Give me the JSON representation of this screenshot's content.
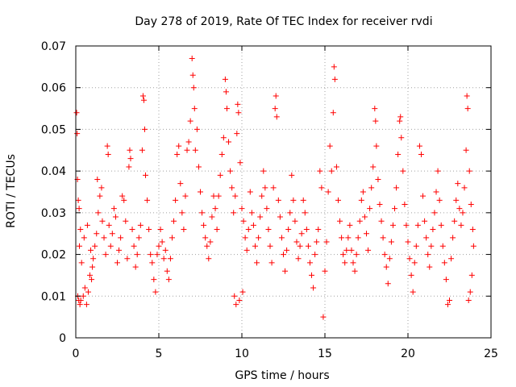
{
  "chart_data": {
    "type": "scatter",
    "title": "Day 278 of 2019, Rate Of TEC Index for receiver rvdi",
    "xlabel": "GPS time / hours",
    "ylabel": "ROTI / TECUs",
    "xlim": [
      0,
      25
    ],
    "ylim": [
      0,
      0.07
    ],
    "x_ticks": [
      "0",
      "5",
      "10",
      "15",
      "20",
      "25"
    ],
    "y_ticks": [
      "0",
      "0.01",
      "0.02",
      "0.03",
      "0.04",
      "0.05",
      "0.06",
      "0.07"
    ],
    "grid": true,
    "marker": "+",
    "color": "#ff0000",
    "series": [
      {
        "name": "rvdi",
        "points": [
          [
            0.05,
            0.054
          ],
          [
            0.08,
            0.049
          ],
          [
            0.1,
            0.038
          ],
          [
            0.15,
            0.033
          ],
          [
            0.2,
            0.031
          ],
          [
            0.12,
            0.01
          ],
          [
            0.18,
            0.009
          ],
          [
            0.25,
            0.008
          ],
          [
            0.3,
            0.009
          ],
          [
            0.22,
            0.022
          ],
          [
            0.28,
            0.026
          ],
          [
            0.35,
            0.018
          ],
          [
            0.45,
            0.01
          ],
          [
            0.55,
            0.012
          ],
          [
            0.65,
            0.008
          ],
          [
            0.75,
            0.011
          ],
          [
            0.85,
            0.015
          ],
          [
            0.95,
            0.014
          ],
          [
            1.05,
            0.019
          ],
          [
            1.15,
            0.022
          ],
          [
            0.5,
            0.024
          ],
          [
            0.7,
            0.027
          ],
          [
            0.9,
            0.021
          ],
          [
            1.0,
            0.017
          ],
          [
            1.25,
            0.025
          ],
          [
            1.35,
            0.03
          ],
          [
            1.45,
            0.034
          ],
          [
            1.55,
            0.036
          ],
          [
            1.3,
            0.038
          ],
          [
            1.6,
            0.028
          ],
          [
            1.7,
            0.024
          ],
          [
            1.8,
            0.02
          ],
          [
            1.9,
            0.046
          ],
          [
            1.95,
            0.044
          ],
          [
            2.0,
            0.027
          ],
          [
            2.1,
            0.022
          ],
          [
            2.2,
            0.025
          ],
          [
            2.3,
            0.031
          ],
          [
            2.4,
            0.029
          ],
          [
            2.5,
            0.018
          ],
          [
            2.6,
            0.021
          ],
          [
            2.7,
            0.024
          ],
          [
            2.8,
            0.034
          ],
          [
            2.9,
            0.033
          ],
          [
            3.0,
            0.028
          ],
          [
            3.1,
            0.019
          ],
          [
            3.2,
            0.041
          ],
          [
            3.25,
            0.045
          ],
          [
            3.3,
            0.043
          ],
          [
            3.4,
            0.026
          ],
          [
            3.5,
            0.022
          ],
          [
            3.6,
            0.017
          ],
          [
            3.7,
            0.02
          ],
          [
            3.8,
            0.024
          ],
          [
            3.9,
            0.027
          ],
          [
            4.0,
            0.045
          ],
          [
            4.05,
            0.058
          ],
          [
            4.1,
            0.057
          ],
          [
            4.15,
            0.05
          ],
          [
            4.2,
            0.039
          ],
          [
            4.3,
            0.033
          ],
          [
            4.4,
            0.026
          ],
          [
            4.5,
            0.02
          ],
          [
            4.6,
            0.018
          ],
          [
            4.7,
            0.014
          ],
          [
            4.8,
            0.011
          ],
          [
            4.9,
            0.02
          ],
          [
            5.0,
            0.022
          ],
          [
            5.1,
            0.026
          ],
          [
            5.2,
            0.023
          ],
          [
            5.3,
            0.019
          ],
          [
            5.4,
            0.021
          ],
          [
            5.5,
            0.016
          ],
          [
            5.6,
            0.014
          ],
          [
            5.7,
            0.019
          ],
          [
            5.8,
            0.024
          ],
          [
            5.9,
            0.028
          ],
          [
            6.0,
            0.033
          ],
          [
            6.1,
            0.044
          ],
          [
            6.2,
            0.046
          ],
          [
            6.3,
            0.037
          ],
          [
            6.4,
            0.03
          ],
          [
            6.5,
            0.026
          ],
          [
            6.6,
            0.034
          ],
          [
            6.7,
            0.045
          ],
          [
            6.8,
            0.047
          ],
          [
            6.9,
            0.052
          ],
          [
            7.0,
            0.067
          ],
          [
            7.05,
            0.063
          ],
          [
            7.1,
            0.06
          ],
          [
            7.15,
            0.055
          ],
          [
            7.2,
            0.045
          ],
          [
            7.3,
            0.05
          ],
          [
            7.4,
            0.041
          ],
          [
            7.5,
            0.035
          ],
          [
            7.6,
            0.03
          ],
          [
            7.7,
            0.027
          ],
          [
            7.8,
            0.024
          ],
          [
            7.9,
            0.022
          ],
          [
            8.0,
            0.019
          ],
          [
            8.1,
            0.023
          ],
          [
            8.2,
            0.029
          ],
          [
            8.3,
            0.034
          ],
          [
            8.4,
            0.031
          ],
          [
            8.5,
            0.026
          ],
          [
            8.6,
            0.034
          ],
          [
            8.7,
            0.039
          ],
          [
            8.8,
            0.044
          ],
          [
            8.9,
            0.048
          ],
          [
            9.0,
            0.062
          ],
          [
            9.05,
            0.059
          ],
          [
            9.1,
            0.055
          ],
          [
            9.2,
            0.047
          ],
          [
            9.3,
            0.04
          ],
          [
            9.4,
            0.036
          ],
          [
            9.5,
            0.03
          ],
          [
            9.6,
            0.034
          ],
          [
            9.7,
            0.049
          ],
          [
            9.75,
            0.056
          ],
          [
            9.8,
            0.054
          ],
          [
            9.9,
            0.042
          ],
          [
            10.0,
            0.031
          ],
          [
            10.1,
            0.028
          ],
          [
            10.2,
            0.024
          ],
          [
            9.55,
            0.01
          ],
          [
            9.65,
            0.008
          ],
          [
            9.85,
            0.009
          ],
          [
            10.05,
            0.011
          ],
          [
            10.3,
            0.021
          ],
          [
            10.4,
            0.026
          ],
          [
            10.5,
            0.035
          ],
          [
            10.6,
            0.03
          ],
          [
            10.7,
            0.027
          ],
          [
            10.8,
            0.022
          ],
          [
            10.9,
            0.018
          ],
          [
            11.0,
            0.024
          ],
          [
            11.1,
            0.029
          ],
          [
            11.2,
            0.034
          ],
          [
            11.3,
            0.04
          ],
          [
            11.4,
            0.036
          ],
          [
            11.5,
            0.031
          ],
          [
            11.6,
            0.026
          ],
          [
            11.7,
            0.022
          ],
          [
            11.8,
            0.018
          ],
          [
            11.9,
            0.036
          ],
          [
            12.0,
            0.055
          ],
          [
            12.05,
            0.058
          ],
          [
            12.1,
            0.053
          ],
          [
            12.2,
            0.033
          ],
          [
            12.3,
            0.029
          ],
          [
            12.4,
            0.024
          ],
          [
            12.5,
            0.02
          ],
          [
            12.6,
            0.016
          ],
          [
            12.7,
            0.021
          ],
          [
            12.8,
            0.026
          ],
          [
            12.9,
            0.03
          ],
          [
            13.0,
            0.039
          ],
          [
            13.1,
            0.033
          ],
          [
            13.2,
            0.028
          ],
          [
            13.3,
            0.023
          ],
          [
            13.4,
            0.019
          ],
          [
            13.5,
            0.022
          ],
          [
            13.6,
            0.025
          ],
          [
            13.7,
            0.033
          ],
          [
            13.8,
            0.03
          ],
          [
            13.9,
            0.026
          ],
          [
            14.0,
            0.022
          ],
          [
            14.1,
            0.018
          ],
          [
            14.2,
            0.015
          ],
          [
            14.3,
            0.012
          ],
          [
            14.4,
            0.02
          ],
          [
            14.5,
            0.023
          ],
          [
            14.6,
            0.026
          ],
          [
            14.7,
            0.04
          ],
          [
            14.8,
            0.036
          ],
          [
            14.9,
            0.005
          ],
          [
            15.0,
            0.016
          ],
          [
            15.1,
            0.023
          ],
          [
            15.2,
            0.035
          ],
          [
            15.3,
            0.046
          ],
          [
            15.4,
            0.04
          ],
          [
            15.5,
            0.054
          ],
          [
            15.55,
            0.065
          ],
          [
            15.6,
            0.062
          ],
          [
            15.7,
            0.041
          ],
          [
            15.8,
            0.033
          ],
          [
            15.9,
            0.028
          ],
          [
            16.0,
            0.024
          ],
          [
            16.1,
            0.02
          ],
          [
            16.2,
            0.018
          ],
          [
            16.3,
            0.021
          ],
          [
            16.4,
            0.024
          ],
          [
            16.5,
            0.027
          ],
          [
            16.6,
            0.021
          ],
          [
            16.7,
            0.018
          ],
          [
            16.8,
            0.016
          ],
          [
            16.9,
            0.02
          ],
          [
            17.0,
            0.024
          ],
          [
            17.1,
            0.028
          ],
          [
            17.2,
            0.033
          ],
          [
            17.3,
            0.035
          ],
          [
            17.4,
            0.029
          ],
          [
            17.5,
            0.025
          ],
          [
            17.6,
            0.021
          ],
          [
            17.7,
            0.031
          ],
          [
            17.8,
            0.036
          ],
          [
            17.9,
            0.041
          ],
          [
            18.0,
            0.055
          ],
          [
            18.05,
            0.052
          ],
          [
            18.1,
            0.046
          ],
          [
            18.2,
            0.038
          ],
          [
            18.3,
            0.032
          ],
          [
            18.4,
            0.028
          ],
          [
            18.5,
            0.024
          ],
          [
            18.6,
            0.02
          ],
          [
            18.7,
            0.017
          ],
          [
            18.8,
            0.013
          ],
          [
            18.9,
            0.019
          ],
          [
            19.0,
            0.023
          ],
          [
            19.1,
            0.027
          ],
          [
            19.2,
            0.031
          ],
          [
            19.3,
            0.036
          ],
          [
            19.4,
            0.044
          ],
          [
            19.5,
            0.052
          ],
          [
            19.55,
            0.053
          ],
          [
            19.6,
            0.048
          ],
          [
            19.7,
            0.04
          ],
          [
            19.8,
            0.032
          ],
          [
            19.9,
            0.027
          ],
          [
            20.0,
            0.023
          ],
          [
            20.1,
            0.019
          ],
          [
            20.2,
            0.015
          ],
          [
            20.3,
            0.011
          ],
          [
            20.4,
            0.018
          ],
          [
            20.5,
            0.022
          ],
          [
            20.6,
            0.027
          ],
          [
            20.7,
            0.046
          ],
          [
            20.8,
            0.044
          ],
          [
            20.9,
            0.034
          ],
          [
            21.0,
            0.028
          ],
          [
            21.1,
            0.024
          ],
          [
            21.2,
            0.02
          ],
          [
            21.3,
            0.017
          ],
          [
            21.4,
            0.022
          ],
          [
            21.5,
            0.026
          ],
          [
            21.6,
            0.03
          ],
          [
            21.7,
            0.035
          ],
          [
            21.8,
            0.04
          ],
          [
            21.9,
            0.033
          ],
          [
            22.0,
            0.027
          ],
          [
            22.1,
            0.022
          ],
          [
            22.2,
            0.018
          ],
          [
            22.3,
            0.014
          ],
          [
            22.4,
            0.008
          ],
          [
            22.5,
            0.009
          ],
          [
            22.6,
            0.019
          ],
          [
            22.7,
            0.024
          ],
          [
            22.8,
            0.028
          ],
          [
            22.9,
            0.033
          ],
          [
            23.0,
            0.037
          ],
          [
            23.1,
            0.031
          ],
          [
            23.2,
            0.027
          ],
          [
            23.3,
            0.03
          ],
          [
            23.4,
            0.036
          ],
          [
            23.5,
            0.045
          ],
          [
            23.55,
            0.058
          ],
          [
            23.6,
            0.055
          ],
          [
            23.7,
            0.04
          ],
          [
            23.8,
            0.032
          ],
          [
            23.9,
            0.026
          ],
          [
            23.95,
            0.022
          ],
          [
            23.85,
            0.015
          ],
          [
            23.75,
            0.011
          ],
          [
            23.65,
            0.009
          ]
        ]
      }
    ]
  }
}
